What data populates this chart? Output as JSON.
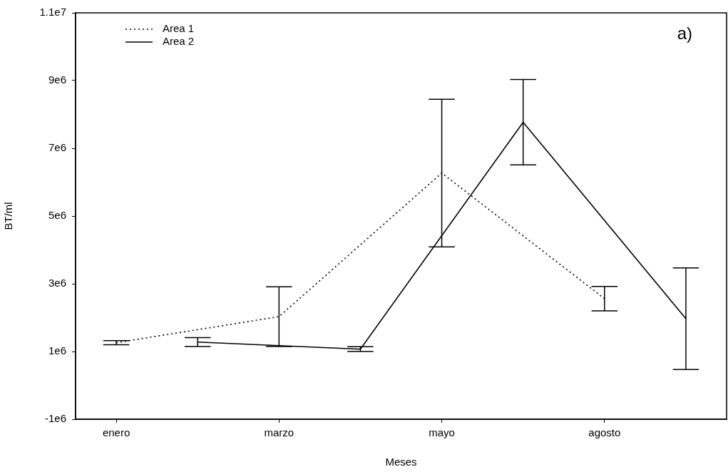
{
  "chart_data": {
    "type": "line",
    "xlabel": "Meses",
    "ylabel": "BT/ml",
    "annotations": [
      "a)"
    ],
    "categories": [
      "enero",
      null,
      "marzo",
      null,
      "mayo",
      null,
      "agosto",
      null
    ],
    "series": [
      {
        "name": "Area 1",
        "color": "#000000",
        "line_style": "dotted",
        "values": [
          1260000,
          null,
          2030000,
          null,
          6270000,
          null,
          2560000,
          null
        ],
        "errors": [
          60000,
          null,
          880000,
          null,
          2180000,
          null,
          360000,
          null
        ]
      },
      {
        "name": "Area 2",
        "color": "#000000",
        "line_style": "solid",
        "values": [
          null,
          1280000,
          null,
          1070000,
          null,
          7770000,
          null,
          1970000
        ],
        "errors": [
          null,
          130000,
          null,
          70000,
          null,
          1260000,
          null,
          1500000
        ]
      }
    ],
    "ylim": [
      -1000000,
      11000000
    ],
    "yticks": [
      {
        "value": -1000000,
        "label": "-1e6"
      },
      {
        "value": 1000000,
        "label": "1e6"
      },
      {
        "value": 3000000,
        "label": "3e6"
      },
      {
        "value": 5000000,
        "label": "5e6"
      },
      {
        "value": 7000000,
        "label": "7e6"
      },
      {
        "value": 9000000,
        "label": "9e6"
      },
      {
        "value": 11000000,
        "label": "1.1e7"
      }
    ],
    "legend": "top left",
    "marker": "none"
  }
}
